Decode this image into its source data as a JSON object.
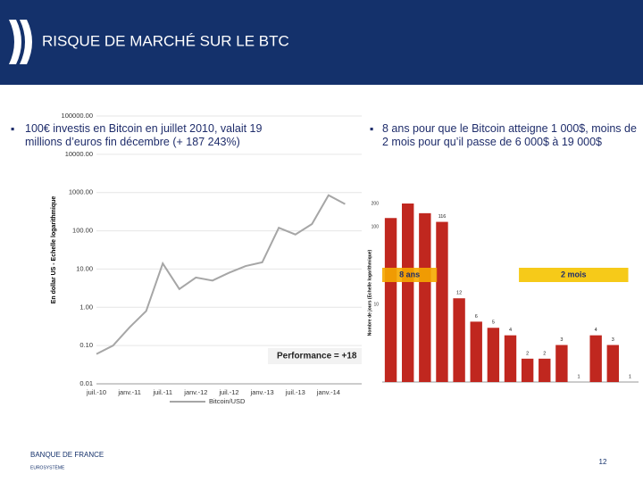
{
  "header": {
    "title": "RISQUE DE MARCHÉ SUR LE BTC"
  },
  "bullets": [
    "100€ investis en Bitcoin en juillet 2010, valait 19 millions d’euros fin décembre (+ 187 243%)",
    "8 ans pour que le Bitcoin atteigne 1 000$, moins de 2 mois pour qu’il passe de 6 000$ à 19 000$"
  ],
  "chart_data": [
    {
      "type": "line",
      "log_y": true,
      "y_label": "En dollar US - Echelle logarithmique",
      "categories": [
        "juil.-10",
        null,
        "janv.-11",
        null,
        "juil.-11",
        null,
        "janv.-12",
        null,
        "juil.-12",
        null,
        "janv.-13",
        null,
        "juil.-13",
        null,
        "janv.-14",
        null
      ],
      "series": [
        {
          "name": "Bitcoin/USD",
          "color": "#a6a6a6",
          "values": [
            0.06,
            0.1,
            0.3,
            0.8,
            14,
            3,
            6,
            5,
            8,
            12,
            15,
            120,
            80,
            150,
            850,
            500
          ]
        }
      ],
      "ylim": [
        0.01,
        100000
      ],
      "yticks": [
        {
          "value": 0.01,
          "label": "0.01"
        },
        {
          "value": 0.1,
          "label": "0.10"
        },
        {
          "value": 1,
          "label": "1.00"
        },
        {
          "value": 10,
          "label": "10.00"
        },
        {
          "value": 100,
          "label": "100.00"
        },
        {
          "value": 1000,
          "label": "1000.00"
        },
        {
          "value": 10000,
          "label": "10000.00"
        },
        {
          "value": 100000,
          "label": "100000.00"
        }
      ],
      "annotation": "Performance = +18"
    },
    {
      "type": "bar",
      "log_y": true,
      "y_label": "Nombre de jours (Echelle logarithmique)",
      "categories": [
        null,
        null,
        null,
        null,
        null,
        null,
        null,
        null,
        null,
        null,
        null,
        null,
        null,
        null,
        null
      ],
      "values": [
        130,
        200,
        150,
        116,
        12,
        6,
        5,
        4,
        2,
        2,
        3,
        1,
        4,
        3,
        1
      ],
      "value_labels": [
        null,
        null,
        null,
        "116",
        "12",
        "6",
        "5",
        "4",
        "2",
        "2",
        "3",
        "1",
        "4",
        "3",
        "1"
      ],
      "color": "#c0271f",
      "ylim": [
        1,
        200
      ],
      "yticks": [
        10,
        100,
        200
      ],
      "annotations": [
        "8 ans",
        "2 mois"
      ]
    }
  ],
  "footer": {
    "logo": "BANQUE DE FRANCE",
    "subtitle": "EUROSYSTÈME",
    "page": "12"
  }
}
